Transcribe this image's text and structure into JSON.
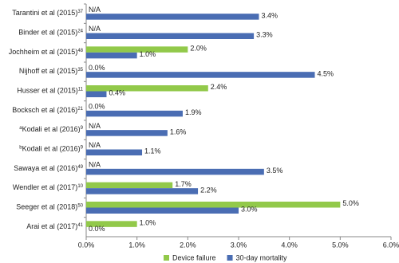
{
  "chart_data": {
    "type": "bar",
    "orientation": "horizontal",
    "categories": [
      "Tarantini et al (2015)",
      "Binder et al (2015)",
      "Jochheim et al (2015)",
      "Nijhoff et al (2015)",
      "Husser et al (2015)",
      "Bocksch et al (2016)",
      "Kodali et al (2016)",
      "Kodali et al (2016)",
      "Sawaya et al (2016)",
      "Wendler et al (2017)",
      "Seeger et al (2018)",
      "Arai et al (2017)"
    ],
    "category_prefixes": [
      null,
      null,
      null,
      null,
      null,
      null,
      "a",
      "b",
      null,
      null,
      null,
      null
    ],
    "category_superscripts": [
      "37",
      "24",
      "48",
      "35",
      "11",
      "21",
      "9",
      "9",
      "49",
      "10",
      "50",
      "41"
    ],
    "series": [
      {
        "name": "Device failure",
        "color": "#92c94a",
        "values": [
          null,
          null,
          2.0,
          0.0,
          2.4,
          0.0,
          null,
          null,
          null,
          1.7,
          5.0,
          1.0
        ],
        "value_labels": [
          "N/A",
          "N/A",
          "2.0%",
          "0.0%",
          "2.4%",
          "0.0%",
          "N/A",
          "N/A",
          "N/A",
          "1.7%",
          "5.0%",
          "1.0%"
        ]
      },
      {
        "name": "30-day mortality",
        "color": "#4a6db3",
        "values": [
          3.4,
          3.3,
          1.0,
          4.5,
          0.4,
          1.9,
          1.6,
          1.1,
          3.5,
          2.2,
          3.0,
          0.0
        ],
        "value_labels": [
          "3.4%",
          "3.3%",
          "1.0%",
          "4.5%",
          "0.4%",
          "1.9%",
          "1.6%",
          "1.1%",
          "3.5%",
          "2.2%",
          "3.0%",
          "0.0%"
        ]
      }
    ],
    "xlim": [
      0,
      6
    ],
    "xticks": [
      {
        "value": 0,
        "label": "0.0%"
      },
      {
        "value": 1,
        "label": "1.0%"
      },
      {
        "value": 2,
        "label": "2.0%"
      },
      {
        "value": 3,
        "label": "3.0%"
      },
      {
        "value": 4,
        "label": "4.0%"
      },
      {
        "value": 5,
        "label": "5.0%"
      },
      {
        "value": 6,
        "label": "6.0%"
      }
    ],
    "legend": "bottom"
  }
}
